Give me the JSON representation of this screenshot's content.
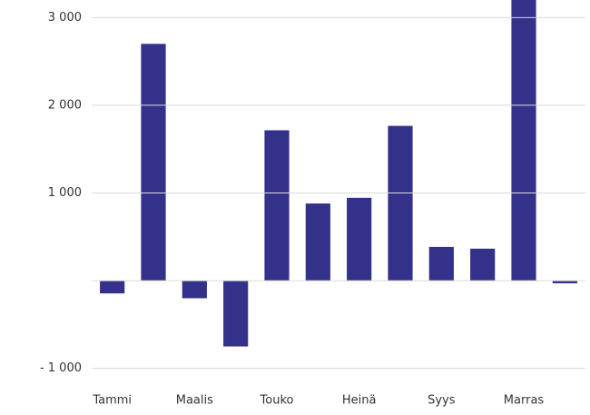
{
  "chart_data": {
    "type": "bar",
    "categories": [
      "Tammi",
      null,
      "Maalis",
      null,
      "Touko",
      null,
      "Heinä",
      null,
      "Syys",
      null,
      "Marras",
      null
    ],
    "values": [
      -145,
      2700,
      -200,
      -750,
      1715,
      880,
      945,
      1765,
      385,
      365,
      3400,
      -30
    ],
    "color": "#34318a",
    "ylim": [
      -1200,
      3200
    ],
    "yticks": [
      {
        "value": -1000,
        "label": "- 1 000"
      },
      {
        "value": 1000,
        "label": "1 000"
      },
      {
        "value": 2000,
        "label": "2 000"
      },
      {
        "value": 3000,
        "label": "3 000"
      }
    ],
    "grid": true
  }
}
